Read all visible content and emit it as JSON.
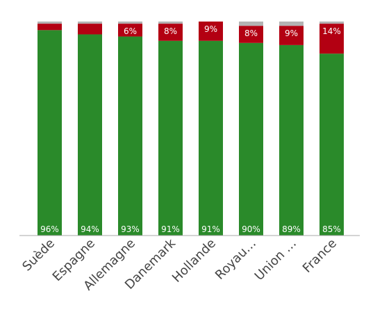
{
  "chart_data": {
    "type": "bar",
    "stacked": true,
    "normalized": true,
    "categories": [
      "Suède",
      "Espagne",
      "Allemagne",
      "Danemark",
      "Hollande",
      "Royau…",
      "Union …",
      "France"
    ],
    "series": [
      {
        "color": "#2a8a2a",
        "values": [
          96,
          94,
          93,
          91,
          91,
          90,
          89,
          85
        ],
        "labels": [
          "96%",
          "94%",
          "93%",
          "91%",
          "91%",
          "90%",
          "89%",
          "85%"
        ]
      },
      {
        "color": "#b30012",
        "values": [
          3,
          5,
          6,
          8,
          9,
          8,
          9,
          14
        ],
        "labels": [
          "",
          "",
          "6%",
          "8%",
          "9%",
          "8%",
          "9%",
          "14%"
        ]
      },
      {
        "color": "#b3b3b3",
        "values": [
          1,
          1,
          1,
          1,
          0,
          2,
          2,
          1
        ],
        "labels": [
          "",
          "",
          "",
          "",
          "",
          "",
          "",
          ""
        ]
      }
    ],
    "ylim": [
      0,
      100
    ],
    "grid": false,
    "legend": "none"
  }
}
